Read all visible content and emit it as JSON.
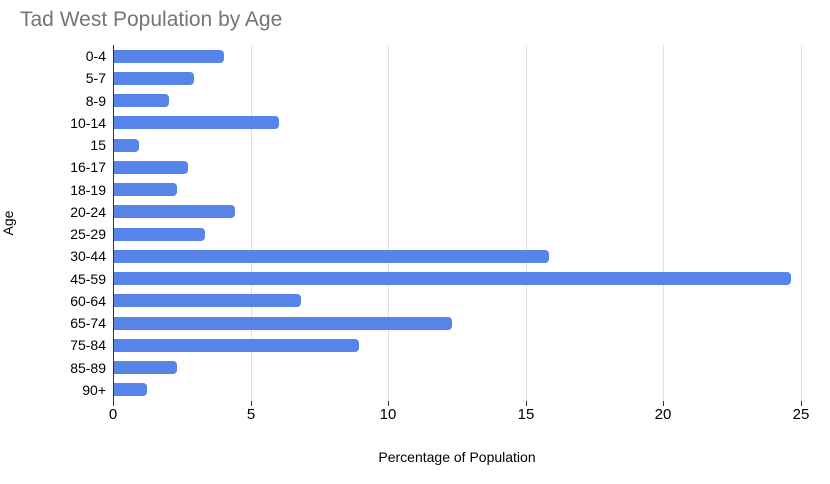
{
  "chart": {
    "title": "Tad West Population by Age",
    "x_axis_title": "Percentage of Population",
    "y_axis_title": "Age"
  },
  "chart_data": {
    "type": "bar",
    "orientation": "horizontal",
    "title": "Tad West Population by Age",
    "xlabel": "Percentage of Population",
    "ylabel": "Age",
    "categories": [
      "0-4",
      "5-7",
      "8-9",
      "10-14",
      "15",
      "16-17",
      "18-19",
      "20-24",
      "25-29",
      "30-44",
      "45-59",
      "60-64",
      "65-74",
      "75-84",
      "85-89",
      "90+"
    ],
    "values": [
      4.0,
      2.9,
      2.0,
      6.0,
      0.9,
      2.7,
      2.3,
      4.4,
      3.3,
      15.8,
      24.6,
      6.8,
      12.3,
      8.9,
      2.3,
      1.2
    ],
    "xlim": [
      0,
      25
    ],
    "xticks": [
      0,
      5,
      10,
      15,
      20,
      25
    ],
    "grid": true,
    "legend": "none",
    "colors": {
      "bar": "#5784e8",
      "title": "#757575",
      "axis_text": "#000000",
      "gridline": "#e0e0e0",
      "baseline": "#333333",
      "background": "#ffffff"
    }
  }
}
